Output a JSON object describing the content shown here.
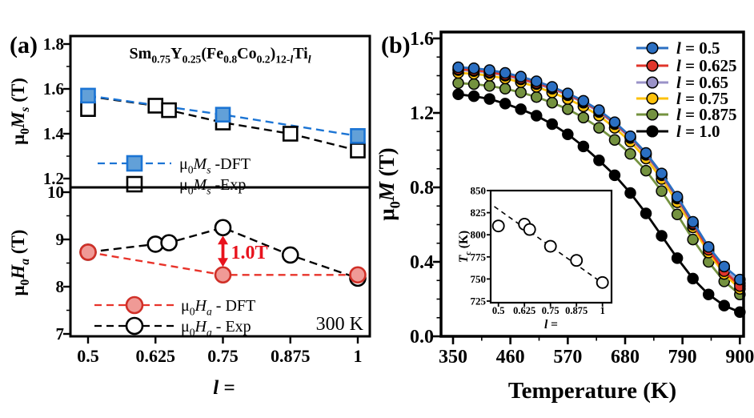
{
  "figure_labels": {
    "panel_a": "(a)",
    "panel_b": "(b)"
  },
  "colors": {
    "dft_blue_line": "#1b74d4",
    "dft_blue_fill": "#62a0d8",
    "exp_black": "#000000",
    "dft_red_line": "#e8332a",
    "dft_red_fill": "#f09a96",
    "dft_red_edge": "#d03028",
    "arrow_red": "#e8131d",
    "b_blue": "#2b6fc2",
    "b_red": "#e0352b",
    "b_purple": "#9a92c8",
    "b_yellow": "#fdc10a",
    "b_green": "#74923f",
    "b_black": "#000000"
  },
  "chart_data": {
    "panel_a": {
      "title_segments": [
        [
          "n",
          "Sm"
        ],
        [
          "s",
          "0.75"
        ],
        [
          "n",
          "Y"
        ],
        [
          "s",
          "0.25"
        ],
        [
          "n",
          "(Fe"
        ],
        [
          "s",
          "0.8"
        ],
        [
          "n",
          "Co"
        ],
        [
          "s",
          "0.2"
        ],
        [
          "n",
          ")"
        ],
        [
          "s",
          "12-"
        ],
        [
          "si",
          "l"
        ],
        [
          "n",
          "Ti"
        ],
        [
          "si",
          "l"
        ]
      ],
      "x_ticks": [
        0.5,
        0.625,
        0.75,
        0.875,
        1.0
      ],
      "x_tick_labels": [
        "0.5",
        "0.625",
        "0.75",
        "0.875",
        "1"
      ],
      "xlabel_segments": [
        [
          "bi",
          "l"
        ],
        [
          "n",
          " ="
        ]
      ],
      "top_plot": {
        "type": "line",
        "ylabel_segments": [
          [
            "n",
            "μ"
          ],
          [
            "s",
            "0"
          ],
          [
            "i",
            "M"
          ],
          [
            "si",
            "s"
          ],
          [
            "n",
            " (T)"
          ]
        ],
        "ylim": [
          1.2,
          1.8
        ],
        "yticks": [
          1.2,
          1.4,
          1.6,
          1.8
        ],
        "ytick_labels": [
          "1.2",
          "1.4",
          "1.6",
          "1.8"
        ],
        "yminors": [
          1.3,
          1.5,
          1.7
        ],
        "series": [
          {
            "name": "ms-dft",
            "legend_segments": [
              [
                "n",
                "μ"
              ],
              [
                "s",
                "0"
              ],
              [
                "i",
                "M"
              ],
              [
                "si",
                "s"
              ],
              [
                "n",
                " -DFT"
              ]
            ],
            "marker": "square-filled",
            "x": [
              0.5,
              0.75,
              1.0
            ],
            "y": [
              1.57,
              1.485,
              1.39
            ]
          },
          {
            "name": "ms-exp",
            "legend_segments": [
              [
                "n",
                "μ"
              ],
              [
                "s",
                "0"
              ],
              [
                "i",
                "M"
              ],
              [
                "si",
                "s"
              ],
              [
                "n",
                " -Exp"
              ]
            ],
            "marker": "square-open",
            "x": [
              0.5,
              0.625,
              0.65,
              0.75,
              0.875,
              1.0
            ],
            "y": [
              1.51,
              1.525,
              1.505,
              1.45,
              1.4,
              1.325
            ],
            "line_x": [
              0.5,
              0.625,
              0.65,
              0.75,
              0.875,
              1.0
            ],
            "line_y": [
              1.567,
              1.525,
              1.505,
              1.45,
              1.4,
              1.325
            ]
          }
        ]
      },
      "bottom_plot": {
        "type": "line",
        "ylabel_segments": [
          [
            "n",
            "μ"
          ],
          [
            "s",
            "0"
          ],
          [
            "i",
            "H"
          ],
          [
            "si",
            "a"
          ],
          [
            "n",
            " (T)"
          ]
        ],
        "ylim": [
          7,
          10
        ],
        "yticks": [
          7,
          8,
          9,
          10
        ],
        "ytick_labels": [
          "7",
          "8",
          "9",
          "10"
        ],
        "yminors": [
          7.5,
          8.5,
          9.5
        ],
        "series": [
          {
            "name": "ha-dft",
            "legend_segments": [
              [
                "n",
                "μ"
              ],
              [
                "s",
                "0"
              ],
              [
                "i",
                "H"
              ],
              [
                "si",
                "a"
              ],
              [
                "n",
                " - DFT"
              ]
            ],
            "marker": "circle-filled-red",
            "x": [
              0.5,
              0.75,
              1.0
            ],
            "y": [
              8.73,
              8.25,
              8.25
            ]
          },
          {
            "name": "ha-exp",
            "legend_segments": [
              [
                "n",
                "μ"
              ],
              [
                "s",
                "0"
              ],
              [
                "i",
                "H"
              ],
              [
                "si",
                "a"
              ],
              [
                "n",
                " - Exp"
              ]
            ],
            "marker": "circle-open",
            "x": [
              0.5,
              0.625,
              0.65,
              0.75,
              0.875,
              1.0
            ],
            "y": [
              8.73,
              8.9,
              8.93,
              9.25,
              8.67,
              8.18
            ]
          }
        ],
        "arrow": {
          "x": 0.75,
          "from_value": 9.25,
          "to_value": 8.25,
          "label": "1.0T"
        },
        "annotation": "300 K"
      }
    },
    "panel_b": {
      "type": "line",
      "xlabel": "Temperature (K)",
      "ylabel_segments": [
        [
          "n",
          "μ"
        ],
        [
          "s",
          "0"
        ],
        [
          "i",
          "M"
        ],
        [
          "n",
          " (T)"
        ]
      ],
      "xticks": [
        350,
        460,
        570,
        680,
        790,
        900
      ],
      "xtick_labels": [
        "350",
        "460",
        "570",
        "680",
        "790",
        "900"
      ],
      "xminor_ticks": [
        405,
        515,
        625,
        735,
        845
      ],
      "yticks": [
        0,
        0.4,
        0.8,
        1.2,
        1.6
      ],
      "ytick_labels": [
        "0.0",
        "0.4",
        "0.8",
        "1.2",
        "1.6"
      ],
      "xlim": [
        327,
        907
      ],
      "ylim": [
        0,
        1.63
      ],
      "temperatures": [
        360,
        390,
        420,
        450,
        480,
        510,
        540,
        570,
        600,
        630,
        660,
        690,
        720,
        750,
        780,
        810,
        840,
        870,
        900
      ],
      "series": [
        {
          "name": "l-0.5",
          "legend_segments": [
            [
              "bi",
              "l"
            ],
            [
              "n",
              " = 0.5"
            ]
          ],
          "color_key": "b_blue",
          "values": [
            1.445,
            1.44,
            1.43,
            1.415,
            1.395,
            1.37,
            1.34,
            1.305,
            1.265,
            1.215,
            1.15,
            1.075,
            0.985,
            0.875,
            0.75,
            0.615,
            0.48,
            0.375,
            0.305
          ]
        },
        {
          "name": "l-0.625",
          "legend_segments": [
            [
              "bi",
              "l"
            ],
            [
              "n",
              " = 0.625"
            ]
          ],
          "color_key": "b_red",
          "values": [
            1.435,
            1.43,
            1.42,
            1.405,
            1.385,
            1.36,
            1.335,
            1.3,
            1.26,
            1.21,
            1.145,
            1.07,
            0.98,
            0.87,
            0.745,
            0.605,
            0.465,
            0.35,
            0.27
          ]
        },
        {
          "name": "l-0.65",
          "legend_segments": [
            [
              "bi",
              "l"
            ],
            [
              "n",
              " = 0.65"
            ]
          ],
          "color_key": "b_purple",
          "values": [
            1.43,
            1.425,
            1.415,
            1.4,
            1.38,
            1.355,
            1.33,
            1.295,
            1.255,
            1.205,
            1.14,
            1.065,
            0.975,
            0.865,
            0.74,
            0.6,
            0.47,
            0.36,
            0.285
          ]
        },
        {
          "name": "l-0.75",
          "legend_segments": [
            [
              "bi",
              "l"
            ],
            [
              "n",
              " = 0.75"
            ]
          ],
          "color_key": "b_yellow",
          "values": [
            1.415,
            1.41,
            1.4,
            1.385,
            1.365,
            1.34,
            1.31,
            1.275,
            1.235,
            1.185,
            1.12,
            1.045,
            0.955,
            0.845,
            0.72,
            0.585,
            0.45,
            0.335,
            0.255
          ]
        },
        {
          "name": "l-0.875",
          "legend_segments": [
            [
              "bi",
              "l"
            ],
            [
              "n",
              " = 0.875"
            ]
          ],
          "color_key": "b_green",
          "values": [
            1.36,
            1.355,
            1.345,
            1.33,
            1.31,
            1.285,
            1.255,
            1.22,
            1.175,
            1.12,
            1.055,
            0.98,
            0.89,
            0.78,
            0.655,
            0.52,
            0.4,
            0.295,
            0.225
          ]
        },
        {
          "name": "l-1.0",
          "legend_segments": [
            [
              "bi",
              "l"
            ],
            [
              "n",
              " = 1.0"
            ]
          ],
          "color_key": "b_black",
          "values": [
            1.3,
            1.29,
            1.275,
            1.25,
            1.22,
            1.185,
            1.14,
            1.085,
            1.02,
            0.945,
            0.865,
            0.77,
            0.66,
            0.54,
            0.42,
            0.31,
            0.225,
            0.165,
            0.13
          ]
        }
      ],
      "inset": {
        "type": "scatter",
        "ylabel_segments": [
          [
            "i",
            "T"
          ],
          [
            "s",
            "c"
          ],
          [
            "n",
            " (K)"
          ]
        ],
        "xlabel_segments": [
          [
            "bi",
            "l"
          ],
          [
            "n",
            " ="
          ]
        ],
        "yticks": [
          725,
          750,
          775,
          800,
          825,
          850
        ],
        "ytick_labels": [
          "725",
          "750",
          "775",
          "800",
          "825",
          "850"
        ],
        "xticks": [
          0.5,
          0.625,
          0.75,
          0.875,
          1.0
        ],
        "xtick_labels": [
          "0.5",
          "0.625",
          "0.75",
          "0.875",
          "1"
        ],
        "x": [
          0.5,
          0.625,
          0.65,
          0.75,
          0.875,
          1.0
        ],
        "tc": [
          810,
          812,
          806,
          787,
          771,
          746
        ],
        "fit_line": {
          "x": [
            0.48,
            1.02
          ],
          "y": [
            832,
            742
          ]
        }
      }
    }
  }
}
